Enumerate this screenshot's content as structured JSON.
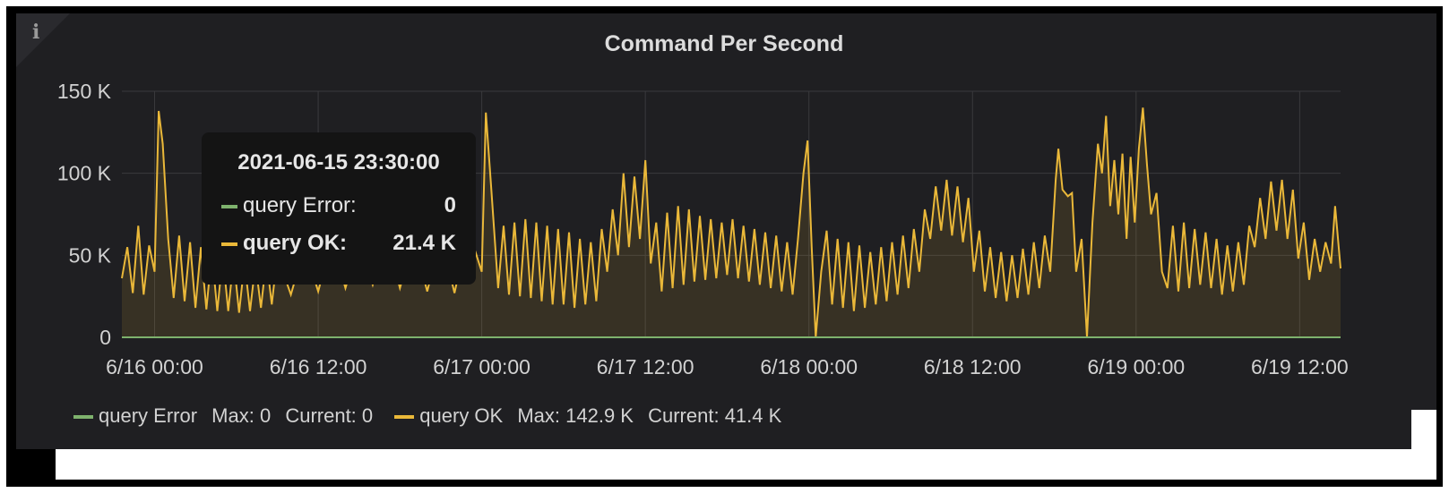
{
  "panel": {
    "info_icon": "info-icon",
    "colors": {
      "background": "#1f1f22",
      "grid": "#3a3a3d",
      "error_series": "#7eb26d",
      "ok_series": "#eab839"
    }
  },
  "tooltip": {
    "time": "2021-06-15 23:30:00",
    "rows": [
      {
        "label": "query Error:",
        "value": "0",
        "color": "#7eb26d"
      },
      {
        "label": "query OK:",
        "value": "21.4 K",
        "color": "#eab839"
      }
    ]
  },
  "legend": {
    "items": [
      {
        "name": "query Error",
        "max": "Max: 0",
        "current": "Current: 0",
        "color": "#7eb26d"
      },
      {
        "name": "query OK",
        "max": "Max: 142.9 K",
        "current": "Current: 41.4 K",
        "color": "#eab839"
      }
    ]
  },
  "chart_data": {
    "type": "area",
    "title": "Command Per Second",
    "y_ticks": [
      "0",
      "50 K",
      "100 K",
      "150 K"
    ],
    "x_ticks": [
      "6/16 00:00",
      "6/16 12:00",
      "6/17 00:00",
      "6/17 12:00",
      "6/18 00:00",
      "6/18 12:00",
      "6/19 00:00",
      "6/19 12:00"
    ],
    "ylim": [
      0,
      150000
    ],
    "x_unit": "hours since 6/16 00:00",
    "xlim": [
      -2.4,
      87
    ],
    "grid": true,
    "legend_position": "bottom-left",
    "series": [
      {
        "name": "query Error",
        "color": "#7eb26d",
        "points": [
          [
            -2.4,
            0
          ],
          [
            87,
            0
          ]
        ]
      },
      {
        "name": "query OK",
        "color": "#eab839",
        "points": [
          [
            -2.4,
            36000
          ],
          [
            -2.0,
            55000
          ],
          [
            -1.6,
            27000
          ],
          [
            -1.2,
            68000
          ],
          [
            -0.8,
            26000
          ],
          [
            -0.4,
            56000
          ],
          [
            0.0,
            40000
          ],
          [
            0.3,
            138000
          ],
          [
            0.6,
            118000
          ],
          [
            1.0,
            60000
          ],
          [
            1.4,
            24000
          ],
          [
            1.8,
            62000
          ],
          [
            2.2,
            22000
          ],
          [
            2.6,
            58000
          ],
          [
            3.0,
            18000
          ],
          [
            3.4,
            55000
          ],
          [
            3.8,
            17000
          ],
          [
            4.2,
            52000
          ],
          [
            4.6,
            16000
          ],
          [
            5.0,
            50000
          ],
          [
            5.4,
            16000
          ],
          [
            5.8,
            48000
          ],
          [
            6.2,
            15000
          ],
          [
            6.6,
            46000
          ],
          [
            7.0,
            16000
          ],
          [
            7.4,
            45000
          ],
          [
            7.8,
            18000
          ],
          [
            8.2,
            48000
          ],
          [
            8.6,
            20000
          ],
          [
            9.0,
            50000
          ],
          [
            10,
            26000
          ],
          [
            11,
            55000
          ],
          [
            12,
            28000
          ],
          [
            13,
            60000
          ],
          [
            14,
            30000
          ],
          [
            15,
            58000
          ],
          [
            16,
            32000
          ],
          [
            17,
            62000
          ],
          [
            18,
            30000
          ],
          [
            19,
            60000
          ],
          [
            20,
            28000
          ],
          [
            21,
            62000
          ],
          [
            22,
            27000
          ],
          [
            23,
            66000
          ],
          [
            24,
            40000
          ],
          [
            24.3,
            137000
          ],
          [
            24.7,
            90000
          ],
          [
            25.2,
            30000
          ],
          [
            25.6,
            68000
          ],
          [
            26.0,
            26000
          ],
          [
            26.4,
            70000
          ],
          [
            26.8,
            25000
          ],
          [
            27.2,
            72000
          ],
          [
            27.6,
            24000
          ],
          [
            28.0,
            70000
          ],
          [
            28.4,
            22000
          ],
          [
            28.8,
            68000
          ],
          [
            29.2,
            20000
          ],
          [
            29.6,
            66000
          ],
          [
            30.0,
            20000
          ],
          [
            30.4,
            64000
          ],
          [
            30.8,
            18000
          ],
          [
            31.2,
            60000
          ],
          [
            31.6,
            20000
          ],
          [
            32.0,
            58000
          ],
          [
            32.4,
            22000
          ],
          [
            32.8,
            66000
          ],
          [
            33.2,
            40000
          ],
          [
            33.6,
            78000
          ],
          [
            34.0,
            50000
          ],
          [
            34.4,
            100000
          ],
          [
            34.8,
            55000
          ],
          [
            35.2,
            98000
          ],
          [
            35.6,
            60000
          ],
          [
            36.0,
            108000
          ],
          [
            36.4,
            45000
          ],
          [
            36.8,
            70000
          ],
          [
            37.2,
            28000
          ],
          [
            37.6,
            76000
          ],
          [
            38.0,
            30000
          ],
          [
            38.4,
            80000
          ],
          [
            38.8,
            32000
          ],
          [
            39.2,
            78000
          ],
          [
            39.6,
            34000
          ],
          [
            40.0,
            74000
          ],
          [
            40.4,
            35000
          ],
          [
            40.8,
            72000
          ],
          [
            41.2,
            36000
          ],
          [
            41.6,
            70000
          ],
          [
            42.0,
            38000
          ],
          [
            42.4,
            72000
          ],
          [
            42.8,
            36000
          ],
          [
            43.2,
            68000
          ],
          [
            43.6,
            34000
          ],
          [
            44.0,
            66000
          ],
          [
            44.4,
            32000
          ],
          [
            44.8,
            64000
          ],
          [
            45.2,
            30000
          ],
          [
            45.6,
            62000
          ],
          [
            46.0,
            28000
          ],
          [
            46.4,
            58000
          ],
          [
            46.8,
            26000
          ],
          [
            47.2,
            60000
          ],
          [
            47.6,
            100000
          ],
          [
            47.9,
            120000
          ],
          [
            48.2,
            55000
          ],
          [
            48.5,
            0
          ],
          [
            48.9,
            40000
          ],
          [
            49.3,
            65000
          ],
          [
            49.7,
            20000
          ],
          [
            50.1,
            60000
          ],
          [
            50.5,
            18000
          ],
          [
            50.9,
            58000
          ],
          [
            51.3,
            16000
          ],
          [
            51.7,
            56000
          ],
          [
            52.1,
            18000
          ],
          [
            52.5,
            52000
          ],
          [
            52.9,
            20000
          ],
          [
            53.3,
            55000
          ],
          [
            53.7,
            22000
          ],
          [
            54.1,
            58000
          ],
          [
            54.5,
            26000
          ],
          [
            54.9,
            62000
          ],
          [
            55.3,
            30000
          ],
          [
            55.7,
            66000
          ],
          [
            56.1,
            40000
          ],
          [
            56.5,
            78000
          ],
          [
            56.9,
            60000
          ],
          [
            57.3,
            92000
          ],
          [
            57.7,
            65000
          ],
          [
            58.1,
            96000
          ],
          [
            58.5,
            62000
          ],
          [
            58.9,
            92000
          ],
          [
            59.3,
            58000
          ],
          [
            59.7,
            85000
          ],
          [
            60.1,
            40000
          ],
          [
            60.5,
            65000
          ],
          [
            60.9,
            28000
          ],
          [
            61.3,
            55000
          ],
          [
            61.7,
            24000
          ],
          [
            62.1,
            52000
          ],
          [
            62.5,
            22000
          ],
          [
            62.9,
            50000
          ],
          [
            63.3,
            24000
          ],
          [
            63.7,
            54000
          ],
          [
            64.1,
            26000
          ],
          [
            64.5,
            58000
          ],
          [
            64.9,
            30000
          ],
          [
            65.3,
            62000
          ],
          [
            65.7,
            40000
          ],
          [
            66.1,
            96000
          ],
          [
            66.3,
            115000
          ],
          [
            66.6,
            90000
          ],
          [
            67.0,
            86000
          ],
          [
            67.3,
            88000
          ],
          [
            67.6,
            40000
          ],
          [
            68.0,
            60000
          ],
          [
            68.4,
            0
          ],
          [
            68.8,
            70000
          ],
          [
            69.2,
            118000
          ],
          [
            69.5,
            100000
          ],
          [
            69.8,
            135000
          ],
          [
            70.1,
            80000
          ],
          [
            70.4,
            108000
          ],
          [
            70.7,
            75000
          ],
          [
            71.0,
            112000
          ],
          [
            71.3,
            60000
          ],
          [
            71.6,
            110000
          ],
          [
            71.9,
            70000
          ],
          [
            72.2,
            115000
          ],
          [
            72.5,
            140000
          ],
          [
            72.8,
            105000
          ],
          [
            73.1,
            75000
          ],
          [
            73.5,
            88000
          ],
          [
            73.9,
            40000
          ],
          [
            74.3,
            30000
          ],
          [
            74.7,
            68000
          ],
          [
            75.1,
            28000
          ],
          [
            75.5,
            70000
          ],
          [
            75.9,
            30000
          ],
          [
            76.3,
            66000
          ],
          [
            76.7,
            32000
          ],
          [
            77.1,
            64000
          ],
          [
            77.5,
            30000
          ],
          [
            77.9,
            60000
          ],
          [
            78.3,
            26000
          ],
          [
            78.7,
            56000
          ],
          [
            79.1,
            28000
          ],
          [
            79.5,
            58000
          ],
          [
            79.9,
            32000
          ],
          [
            80.3,
            68000
          ],
          [
            80.7,
            55000
          ],
          [
            81.1,
            85000
          ],
          [
            81.5,
            60000
          ],
          [
            81.9,
            95000
          ],
          [
            82.3,
            65000
          ],
          [
            82.7,
            96000
          ],
          [
            83.1,
            60000
          ],
          [
            83.5,
            90000
          ],
          [
            83.9,
            48000
          ],
          [
            84.3,
            70000
          ],
          [
            84.7,
            35000
          ],
          [
            85.1,
            60000
          ],
          [
            85.5,
            40000
          ],
          [
            85.9,
            58000
          ],
          [
            86.3,
            45000
          ],
          [
            86.6,
            80000
          ],
          [
            87.0,
            42000
          ]
        ]
      }
    ]
  }
}
